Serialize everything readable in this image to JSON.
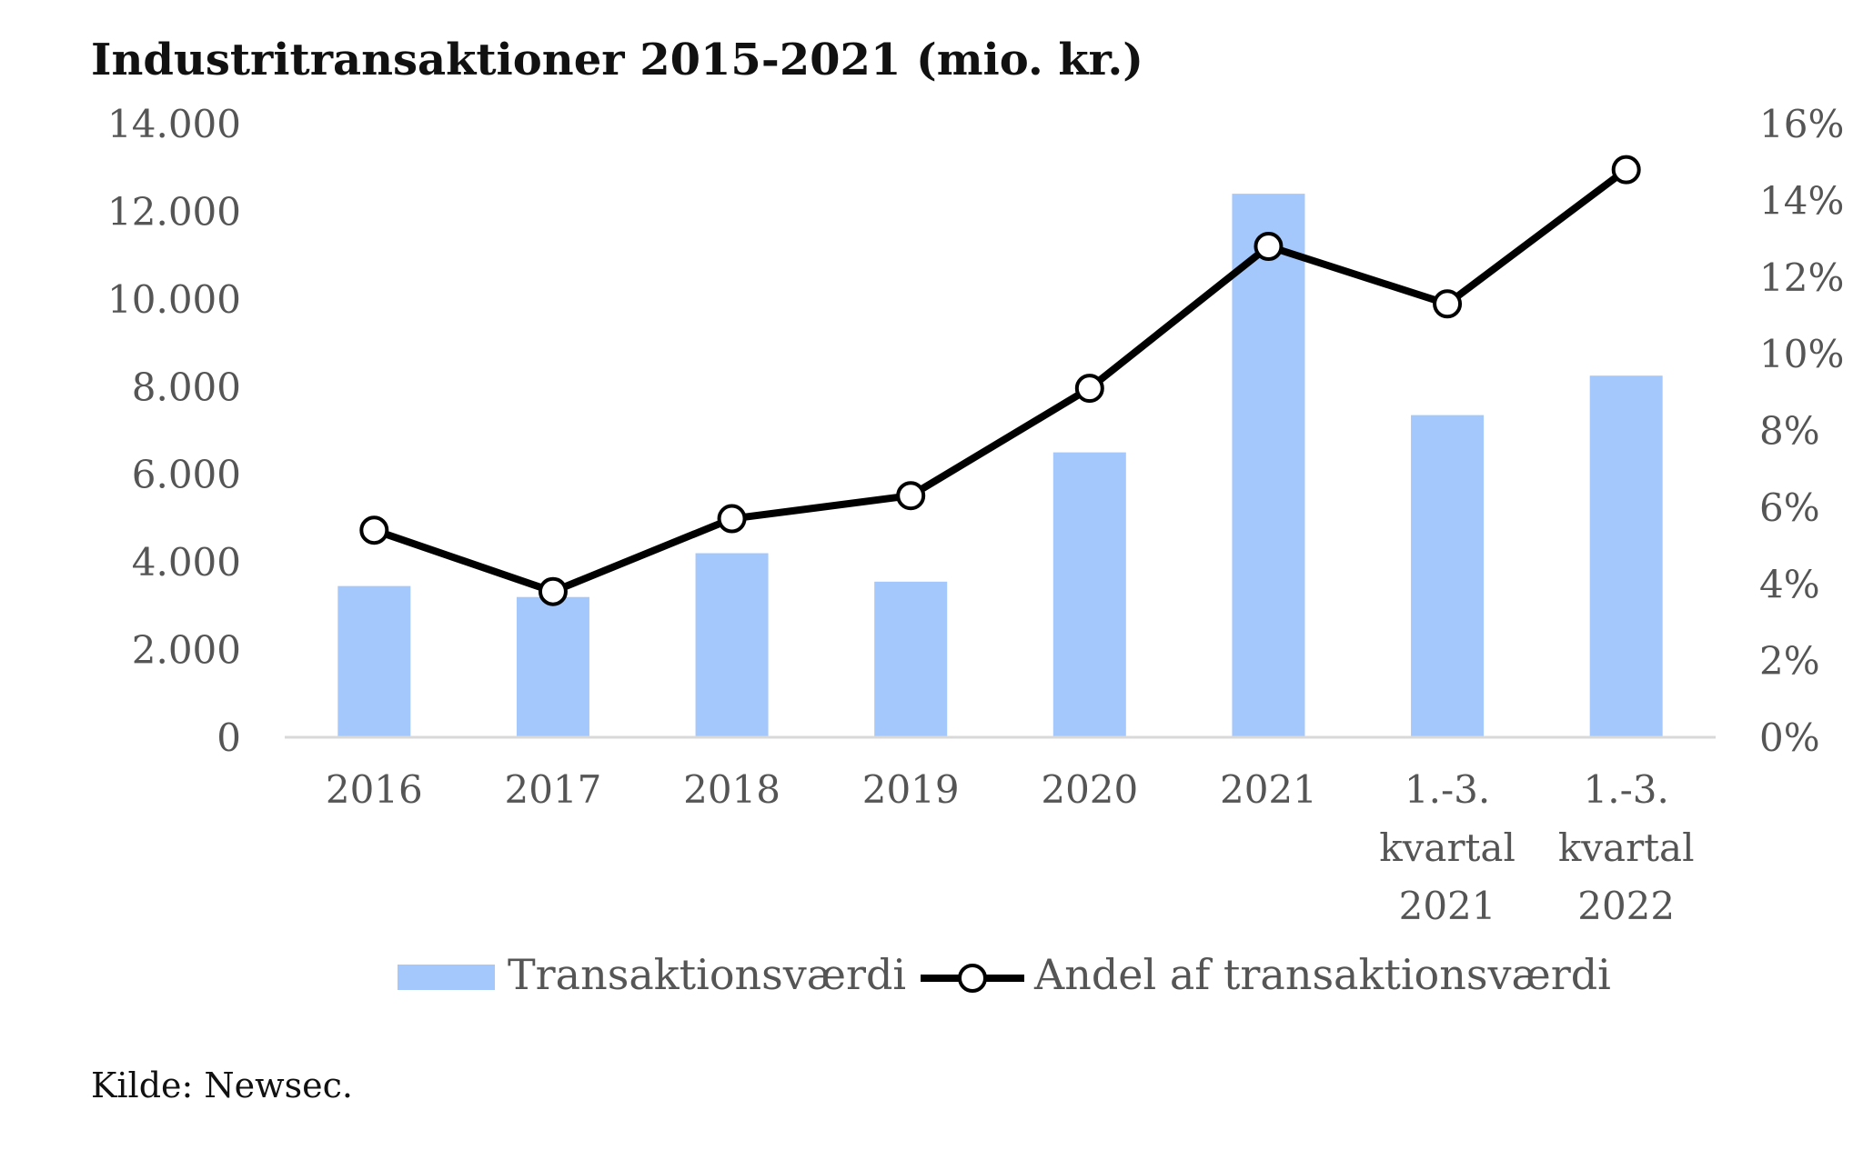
{
  "source": "Kilde: Newsec.",
  "colors": {
    "bar": "#a4c8fc",
    "line": "#000000",
    "marker_fill": "#ffffff",
    "axis": "#d9d9d9",
    "tick_text": "#555555"
  },
  "chart_data": {
    "type": "bar",
    "title": "Industritransaktioner 2015-2021 (mio. kr.)",
    "xlabel": "",
    "ylabel": "",
    "categories": [
      [
        "2016"
      ],
      [
        "2017"
      ],
      [
        "2018"
      ],
      [
        "2019"
      ],
      [
        "2020"
      ],
      [
        "2021"
      ],
      [
        "1.-3.",
        "kvartal",
        "2021"
      ],
      [
        "1.-3.",
        "kvartal",
        "2022"
      ]
    ],
    "series": [
      {
        "name": "Transaktionsværdi",
        "type": "bar",
        "axis": "left",
        "values": [
          3450,
          3200,
          4200,
          3550,
          6500,
          12400,
          7350,
          8250
        ]
      },
      {
        "name": "Andel af transaktionsværdi",
        "type": "line",
        "axis": "right",
        "values": [
          5.4,
          3.8,
          5.7,
          6.3,
          9.1,
          12.8,
          11.3,
          14.8
        ]
      }
    ],
    "ylim": [
      0,
      14000
    ],
    "y_ticks": [
      "0",
      "2.000",
      "4.000",
      "6.000",
      "8.000",
      "10.000",
      "12.000",
      "14.000"
    ],
    "y2lim": [
      0,
      16
    ],
    "y2_ticks": [
      "0%",
      "2%",
      "4%",
      "6%",
      "8%",
      "10%",
      "12%",
      "14%",
      "16%"
    ],
    "grid": false,
    "legend_position": "bottom"
  }
}
